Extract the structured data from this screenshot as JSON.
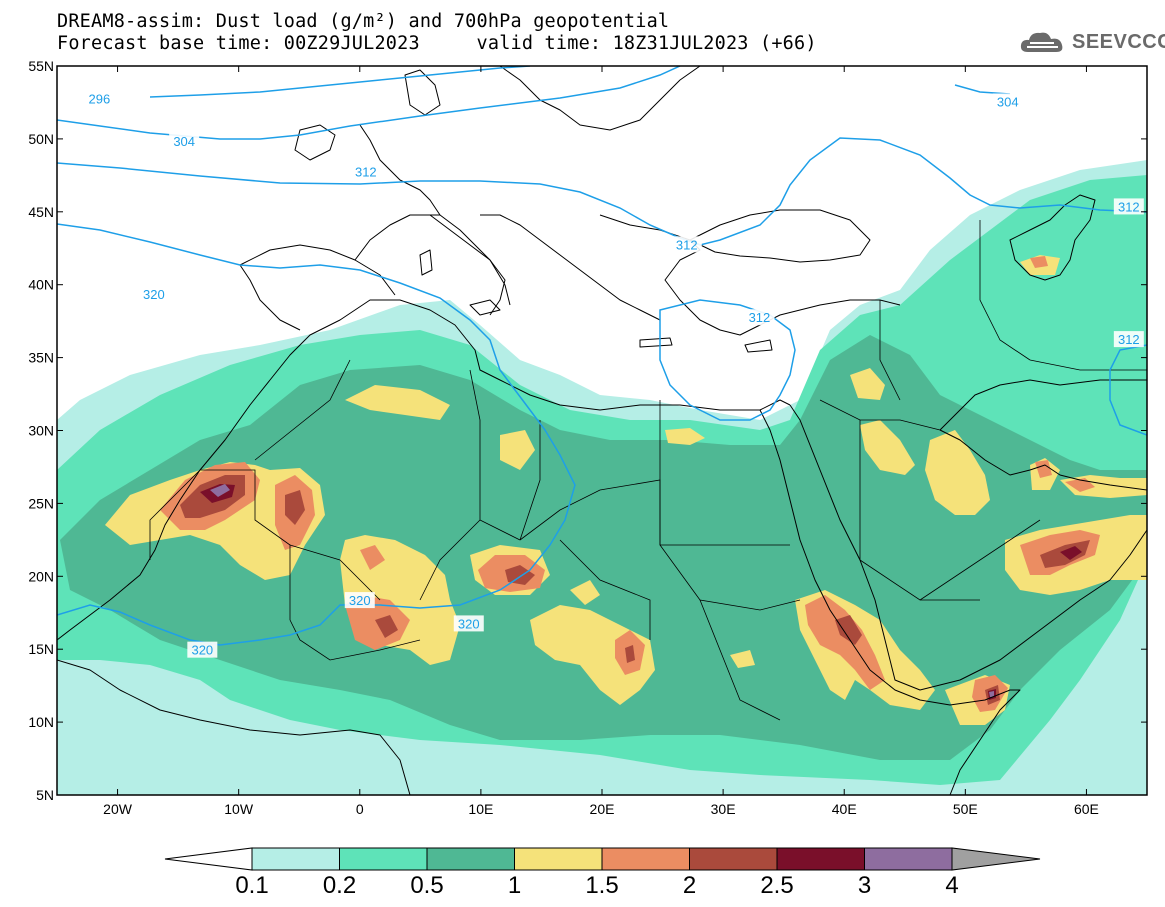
{
  "title": {
    "line1": "DREAM8-assim: Dust load (g/m²) and 700hPa geopotential",
    "line2_left": "Forecast base time: 00Z29JUL2023",
    "line2_right": "valid time: 18Z31JUL2023 (+66)"
  },
  "logo": {
    "text": "SEEVCCC",
    "icon": "cloud-logo-icon"
  },
  "map": {
    "projection": "cylindrical",
    "lon_range": [
      -25,
      65
    ],
    "lat_range": [
      5,
      55
    ],
    "lat_ticks": [
      {
        "value": 55,
        "label": "55N"
      },
      {
        "value": 50,
        "label": "50N"
      },
      {
        "value": 45,
        "label": "45N"
      },
      {
        "value": 40,
        "label": "40N"
      },
      {
        "value": 35,
        "label": "35N"
      },
      {
        "value": 30,
        "label": "30N"
      },
      {
        "value": 25,
        "label": "25N"
      },
      {
        "value": 20,
        "label": "20N"
      },
      {
        "value": 15,
        "label": "15N"
      },
      {
        "value": 10,
        "label": "10N"
      },
      {
        "value": 5,
        "label": "5N"
      }
    ],
    "lon_ticks": [
      {
        "value": -20,
        "label": "20W"
      },
      {
        "value": -10,
        "label": "10W"
      },
      {
        "value": 0,
        "label": "0"
      },
      {
        "value": 10,
        "label": "10E"
      },
      {
        "value": 20,
        "label": "20E"
      },
      {
        "value": 30,
        "label": "30E"
      },
      {
        "value": 40,
        "label": "40E"
      },
      {
        "value": 50,
        "label": "50E"
      },
      {
        "value": 60,
        "label": "60E"
      }
    ],
    "contour_labels": [
      {
        "text": "296",
        "lon": -21.5,
        "lat": 52.7
      },
      {
        "text": "304",
        "lon": -14.5,
        "lat": 49.8
      },
      {
        "text": "304",
        "lon": 53.5,
        "lat": 52.5
      },
      {
        "text": "312",
        "lon": 0.5,
        "lat": 47.7
      },
      {
        "text": "312",
        "lon": 27,
        "lat": 42.7
      },
      {
        "text": "312",
        "lon": 33,
        "lat": 37.7
      },
      {
        "text": "312",
        "lon": 63.5,
        "lat": 45.3
      },
      {
        "text": "312",
        "lon": 63.5,
        "lat": 36.2
      },
      {
        "text": "320",
        "lon": -17,
        "lat": 39.3
      },
      {
        "text": "320",
        "lon": 0,
        "lat": 18.3
      },
      {
        "text": "320",
        "lon": 9,
        "lat": 16.7
      },
      {
        "text": "320",
        "lon": -13,
        "lat": 14.9
      }
    ]
  },
  "colorbar": {
    "thresholds": [
      "0.1",
      "0.2",
      "0.5",
      "1",
      "1.5",
      "2",
      "2.5",
      "3",
      "4"
    ],
    "colors": [
      "#ffffff",
      "#b5eee6",
      "#5ee3b8",
      "#4fb894",
      "#f5e27a",
      "#eb8d62",
      "#aa4a3c",
      "#7a0f2a",
      "#8e6d9f",
      "#a0a0a0"
    ]
  }
}
